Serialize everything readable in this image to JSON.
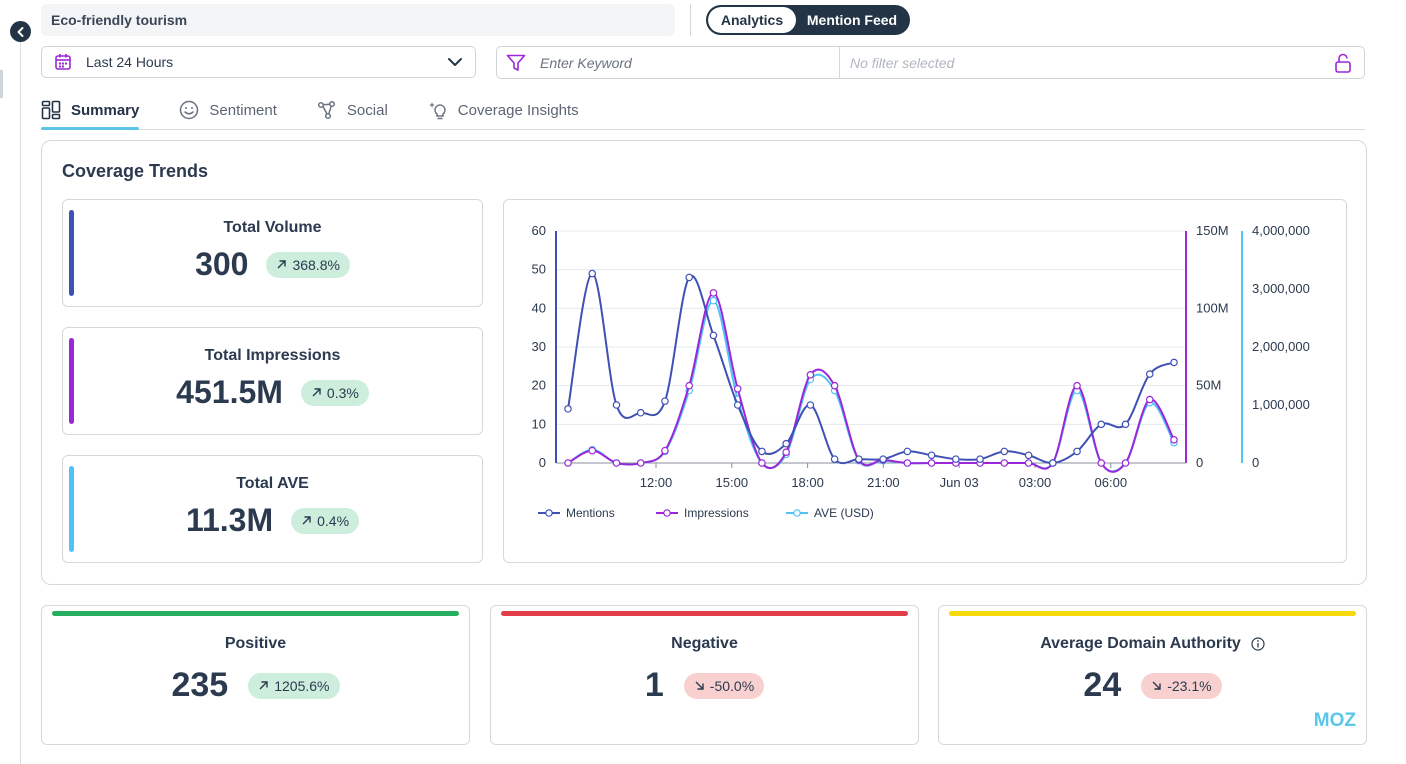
{
  "header": {
    "search_title": "Eco-friendly tourism",
    "toggle": [
      "Analytics",
      "Mention Feed"
    ],
    "active_view": "Analytics"
  },
  "filters": {
    "date_range": "Last 24 Hours",
    "keyword_placeholder": "Enter Keyword",
    "filter_status": "No filter selected"
  },
  "tabs": [
    {
      "label": "Summary",
      "icon": "summary-grid-icon",
      "active": true
    },
    {
      "label": "Sentiment",
      "icon": "smiley-icon",
      "active": false
    },
    {
      "label": "Social",
      "icon": "social-nodes-icon",
      "active": false
    },
    {
      "label": "Coverage Insights",
      "icon": "lightbulb-sparkle-icon",
      "active": false
    }
  ],
  "coverage": {
    "title": "Coverage Trends",
    "metrics": [
      {
        "label": "Total Volume",
        "value": "300",
        "change": "368.8%",
        "direction": "up",
        "color": "#3f51b5"
      },
      {
        "label": "Total Impressions",
        "value": "451.5M",
        "change": "0.3%",
        "direction": "up",
        "color": "#9c27d9"
      },
      {
        "label": "Total AVE",
        "value": "11.3M",
        "change": "0.4%",
        "direction": "up",
        "color": "#4fc3f7"
      }
    ]
  },
  "chart_data": {
    "type": "line",
    "x_tick_labels": [
      "12:00",
      "15:00",
      "18:00",
      "21:00",
      "Jun 03",
      "03:00",
      "06:00"
    ],
    "y_left_ticks": [
      "0",
      "10",
      "20",
      "30",
      "40",
      "50",
      "60"
    ],
    "y_mid_ticks": [
      "0",
      "50M",
      "100M",
      "150M"
    ],
    "y_right_ticks": [
      "0",
      "1,000,000",
      "2,000,000",
      "3,000,000",
      "4,000,000"
    ],
    "ylim_left": [
      0,
      60
    ],
    "ylim_mid": [
      0,
      150000000
    ],
    "ylim_right": [
      0,
      4000000
    ],
    "grid": true,
    "legend_position": "bottom-left",
    "series": [
      {
        "name": "Mentions",
        "axis": "left",
        "color": "#3f51b5",
        "values": [
          14,
          49,
          15,
          13,
          16,
          48,
          33,
          15,
          3,
          5,
          15,
          1,
          1,
          1,
          3,
          2,
          1,
          1,
          3,
          2,
          0,
          3,
          10,
          10,
          23,
          26
        ]
      },
      {
        "name": "Impressions",
        "axis": "mid",
        "color": "#9c27d9",
        "values": [
          0,
          8000000,
          0,
          0,
          8000000,
          50000000,
          110000000,
          48000000,
          0,
          7000000,
          57000000,
          50000000,
          2000000,
          2000000,
          0,
          0,
          0,
          0,
          0,
          0,
          0,
          50000000,
          0,
          0,
          41000000,
          15000000
        ]
      },
      {
        "name": "AVE (USD)",
        "axis": "right",
        "color": "#4fc3f7",
        "values": [
          0,
          230000,
          0,
          0,
          200000,
          1250000,
          2800000,
          1100000,
          0,
          150000,
          1440000,
          1250000,
          40000,
          40000,
          0,
          0,
          0,
          0,
          0,
          0,
          0,
          1250000,
          0,
          0,
          1040000,
          350000
        ]
      }
    ]
  },
  "sentiment": [
    {
      "label": "Positive",
      "value": "235",
      "change": "1205.6%",
      "direction": "up",
      "color": "#27ae60"
    },
    {
      "label": "Negative",
      "value": "1",
      "change": "-50.0%",
      "direction": "down",
      "color": "#e53e4b"
    },
    {
      "label": "Average Domain Authority",
      "value": "24",
      "change": "-23.1%",
      "direction": "down",
      "color": "#f5d90a",
      "logo": "MOZ"
    }
  ]
}
